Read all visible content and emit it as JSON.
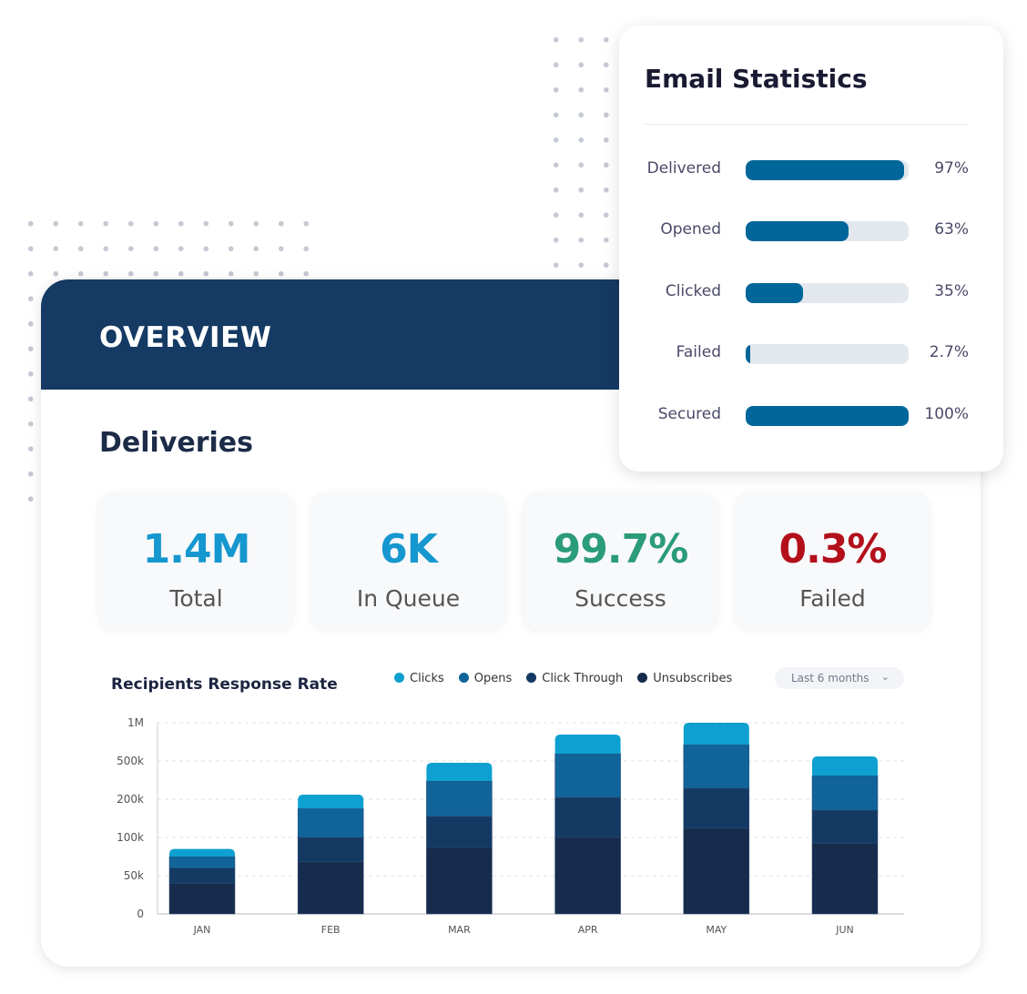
{
  "overview": {
    "title": "OVERVIEW",
    "section": "Deliveries",
    "kpis": [
      {
        "value": "1.4M",
        "label": "Total",
        "color": "#1597cf"
      },
      {
        "value": "6K",
        "label": "In Queue",
        "color": "#1597cf"
      },
      {
        "value": "99.7%",
        "label": "Success",
        "color": "#2b9c78"
      },
      {
        "value": "0.3%",
        "label": "Failed",
        "color": "#b3101b"
      }
    ]
  },
  "email_stats": {
    "title": "Email Statistics",
    "accent": "#016699",
    "rows": [
      {
        "label": "Delivered",
        "value": 97,
        "text": "97%"
      },
      {
        "label": "Opened",
        "value": 63,
        "text": "63%"
      },
      {
        "label": "Clicked",
        "value": 35,
        "text": "35%"
      },
      {
        "label": "Failed",
        "value": 2.7,
        "text": "2.7%"
      },
      {
        "label": "Secured",
        "value": 100,
        "text": "100%"
      }
    ]
  },
  "chart_data": {
    "type": "bar",
    "stacked": true,
    "title": "Recipients Response Rate",
    "categories": [
      "JAN",
      "FEB",
      "MAR",
      "APR",
      "MAY",
      "JUN"
    ],
    "yticks": [
      0,
      50000,
      100000,
      200000,
      500000,
      1000000
    ],
    "ytick_labels": [
      "0",
      "50k",
      "100k",
      "200k",
      "500k",
      "1M"
    ],
    "yscale": "piecewise (evenly spaced ticks)",
    "ylim": [
      0,
      1000000
    ],
    "grid": true,
    "legend": "top",
    "series": [
      {
        "name": "Unsubscribes",
        "color": "#172b4d",
        "values": [
          40000,
          68000,
          87000,
          100000,
          124000,
          92000
        ]
      },
      {
        "name": "Click Through",
        "color": "#143a64",
        "values": [
          20000,
          32000,
          68000,
          114000,
          162000,
          79000
        ]
      },
      {
        "name": "Opens",
        "color": "#11649a",
        "values": [
          15000,
          76000,
          188000,
          381000,
          428000,
          215000
        ]
      },
      {
        "name": "Clicks",
        "color": "#0ea0d0",
        "values": [
          10000,
          60000,
          143000,
          250000,
          286000,
          174000
        ]
      }
    ],
    "legend_order": [
      "Clicks",
      "Opens",
      "Click Through",
      "Unsubscribes"
    ],
    "range_select": "Last 6 months"
  }
}
